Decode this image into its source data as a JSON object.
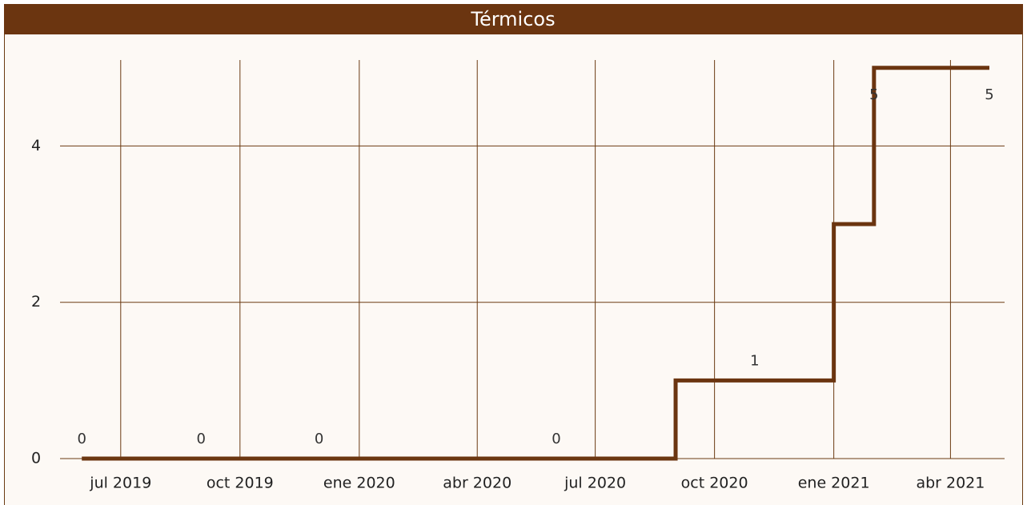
{
  "chart_data": {
    "type": "line",
    "step": true,
    "title": "Térmicos",
    "x": [
      "2019-06",
      "2019-09",
      "2019-12",
      "2020-06",
      "2020-09",
      "2020-11",
      "2021-01",
      "2021-02",
      "2021-05"
    ],
    "series": [
      {
        "name": "Térmicos",
        "color": "#6b3510",
        "values": [
          0,
          0,
          0,
          0,
          1,
          1,
          3,
          5,
          5
        ],
        "value_labels": [
          "0",
          "0",
          "0",
          "0",
          null,
          "1",
          null,
          "5",
          "5"
        ]
      }
    ],
    "xlim": [
      "2019-05",
      "2021-05"
    ],
    "xticks": [
      {
        "value": "2019-07",
        "label": "jul 2019"
      },
      {
        "value": "2019-10",
        "label": "oct 2019"
      },
      {
        "value": "2020-01",
        "label": "ene 2020"
      },
      {
        "value": "2020-04",
        "label": "abr 2020"
      },
      {
        "value": "2020-07",
        "label": "jul 2020"
      },
      {
        "value": "2020-10",
        "label": "oct 2020"
      },
      {
        "value": "2021-01",
        "label": "ene 2021"
      },
      {
        "value": "2021-04",
        "label": "abr 2021"
      }
    ],
    "ylim": [
      0,
      5.1
    ],
    "yticks": [
      0,
      2,
      4
    ],
    "grid": true
  }
}
